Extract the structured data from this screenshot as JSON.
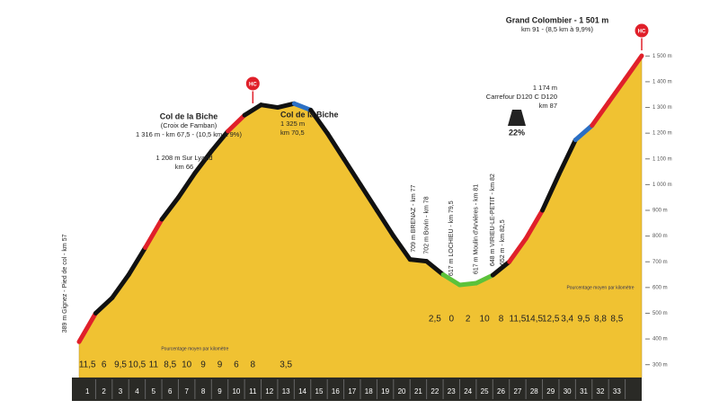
{
  "chart_data": {
    "type": "area",
    "x": [
      0,
      1,
      2,
      3,
      4,
      5,
      6,
      7,
      8,
      9,
      10,
      11,
      12,
      13,
      14,
      15,
      16,
      17,
      18,
      19,
      20,
      21,
      22,
      23,
      24,
      25,
      26,
      27,
      28,
      29,
      30,
      31,
      32,
      33,
      34
    ],
    "values": [
      389,
      500,
      560,
      650,
      755,
      865,
      950,
      1045,
      1130,
      1208,
      1270,
      1310,
      1300,
      1315,
      1290,
      1200,
      1100,
      1000,
      900,
      800,
      709,
      702,
      650,
      610,
      617,
      648,
      700,
      790,
      900,
      1040,
      1174,
      1230,
      1320,
      1410,
      1501
    ],
    "ylim": [
      250,
      1550
    ],
    "xlim": [
      0,
      34
    ],
    "yticks": [
      {
        "value": 300,
        "label": "300 m"
      },
      {
        "value": 400,
        "label": "400 m"
      },
      {
        "value": 500,
        "label": "500 m"
      },
      {
        "value": 600,
        "label": "600 m"
      },
      {
        "value": 700,
        "label": "700 m"
      },
      {
        "value": 800,
        "label": "800 m"
      },
      {
        "value": 900,
        "label": "900 m"
      },
      {
        "value": 1000,
        "label": "1 000 m"
      },
      {
        "value": 1100,
        "label": "1 100 m"
      },
      {
        "value": 1200,
        "label": "1 200 m"
      },
      {
        "value": 1300,
        "label": "1 300 m"
      },
      {
        "value": 1400,
        "label": "1 400 m"
      },
      {
        "value": 1500,
        "label": "1 500 m"
      }
    ],
    "color": "#f0c232",
    "edge_colors": [
      "#e0202a",
      "#111",
      "#111",
      "#111",
      "#e0202a",
      "#111",
      "#111",
      "#111",
      "#111",
      "#e0202a",
      "#111",
      "#111",
      "#111",
      "#2b6fc4",
      "#111",
      "#111",
      "#111",
      "#111",
      "#111",
      "#111",
      "#111",
      "#111",
      "#5cc23a",
      "#5cc23a",
      "#5cc23a",
      "#111",
      "#e0202a",
      "#e0202a",
      "#111",
      "#111",
      "#2b6fc4",
      "#e0202a",
      "#e0202a",
      "#e0202a"
    ],
    "km_labels": [
      1,
      2,
      3,
      4,
      5,
      6,
      7,
      8,
      9,
      10,
      11,
      12,
      13,
      14,
      15,
      16,
      17,
      18,
      19,
      20,
      21,
      22,
      23,
      24,
      25,
      26,
      27,
      28,
      29,
      30,
      31,
      32,
      33
    ],
    "gradient_labels": [
      "11,5",
      "6",
      "9,5",
      "10,5",
      "11",
      "8,5",
      "10",
      "9",
      "9",
      "6",
      "8",
      null,
      "3,5",
      null,
      null,
      null,
      null,
      null,
      null,
      null,
      null,
      "2,5",
      "0",
      "2",
      "10",
      "8",
      "11,5",
      "14,5",
      "12,5",
      "3,4",
      "9,5",
      "8,8",
      "8,5"
    ],
    "gradient_note": [
      "Pourcentage moyen par kilomètre",
      "Pourcentage moyen par kilomètre"
    ],
    "markers": [
      "HC",
      "HC"
    ],
    "annotations": [
      [
        "Col de la Biche",
        "(Croix de Famban)",
        "1 316 m - km 67,5 - (10,5 km à 9%)"
      ],
      [
        "1 208 m Sur Lyand",
        "km 66"
      ],
      [
        "Col de la Biche",
        "1 325 m",
        "km 70,5"
      ],
      [
        "Grand Colombier - 1 501 m",
        "km 91 - (8,5 km à 9,9%)"
      ],
      [
        "1 174 m",
        "Carrefour D120 C D120",
        "km 87"
      ],
      [
        "22%"
      ]
    ],
    "vertical_labels": [
      "389 m Gignez - Pied de col - km 57",
      "709 m BRENAZ - km 77",
      "702 m Bovin - km 78",
      "617 m LOCHIEU - km 79,5",
      "617 m Moulin d'Arvières - km 81",
      "648 m VIRIEU-LE-PETIT - km 82",
      "652 m - km 82,5"
    ]
  }
}
